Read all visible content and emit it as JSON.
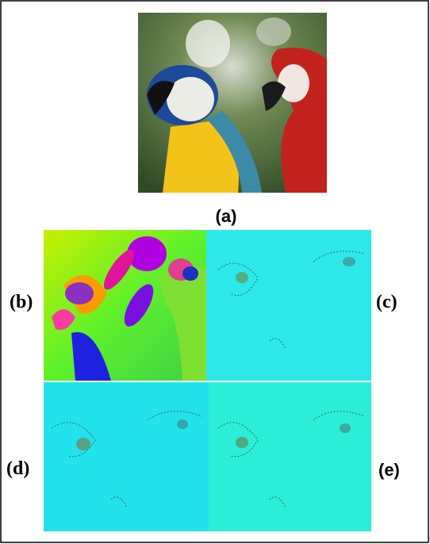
{
  "figure": {
    "panels": [
      {
        "label": "(a)"
      },
      {
        "label": "(b)"
      },
      {
        "label": "(c)"
      },
      {
        "label": "(d)"
      },
      {
        "label": "(e)"
      }
    ]
  }
}
